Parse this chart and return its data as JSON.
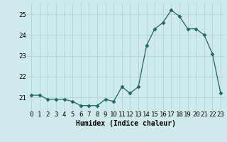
{
  "x": [
    0,
    1,
    2,
    3,
    4,
    5,
    6,
    7,
    8,
    9,
    10,
    11,
    12,
    13,
    14,
    15,
    16,
    17,
    18,
    19,
    20,
    21,
    22,
    23
  ],
  "y": [
    21.1,
    21.1,
    20.9,
    20.9,
    20.9,
    20.8,
    20.6,
    20.6,
    20.6,
    20.9,
    20.8,
    21.5,
    21.2,
    21.5,
    23.5,
    24.3,
    24.6,
    25.2,
    24.9,
    24.3,
    24.3,
    24.0,
    23.1,
    21.2
  ],
  "line_color": "#1a6b5a",
  "marker": "D",
  "markersize": 2.5,
  "bg_color": "#ceeaea",
  "grid_color": "#b8d8d8",
  "xlabel": "Humidex (Indice chaleur)",
  "ylabel_ticks": [
    21,
    22,
    23,
    24,
    25
  ],
  "xtick_labels": [
    "0",
    "1",
    "2",
    "3",
    "4",
    "5",
    "6",
    "7",
    "8",
    "9",
    "10",
    "11",
    "12",
    "13",
    "14",
    "15",
    "16",
    "17",
    "18",
    "19",
    "20",
    "21",
    "22",
    "23"
  ],
  "ylim": [
    20.35,
    25.55
  ],
  "xlim": [
    -0.5,
    23.5
  ],
  "linewidth": 0.9,
  "tick_fontsize": 6.5,
  "xlabel_fontsize": 7.0
}
